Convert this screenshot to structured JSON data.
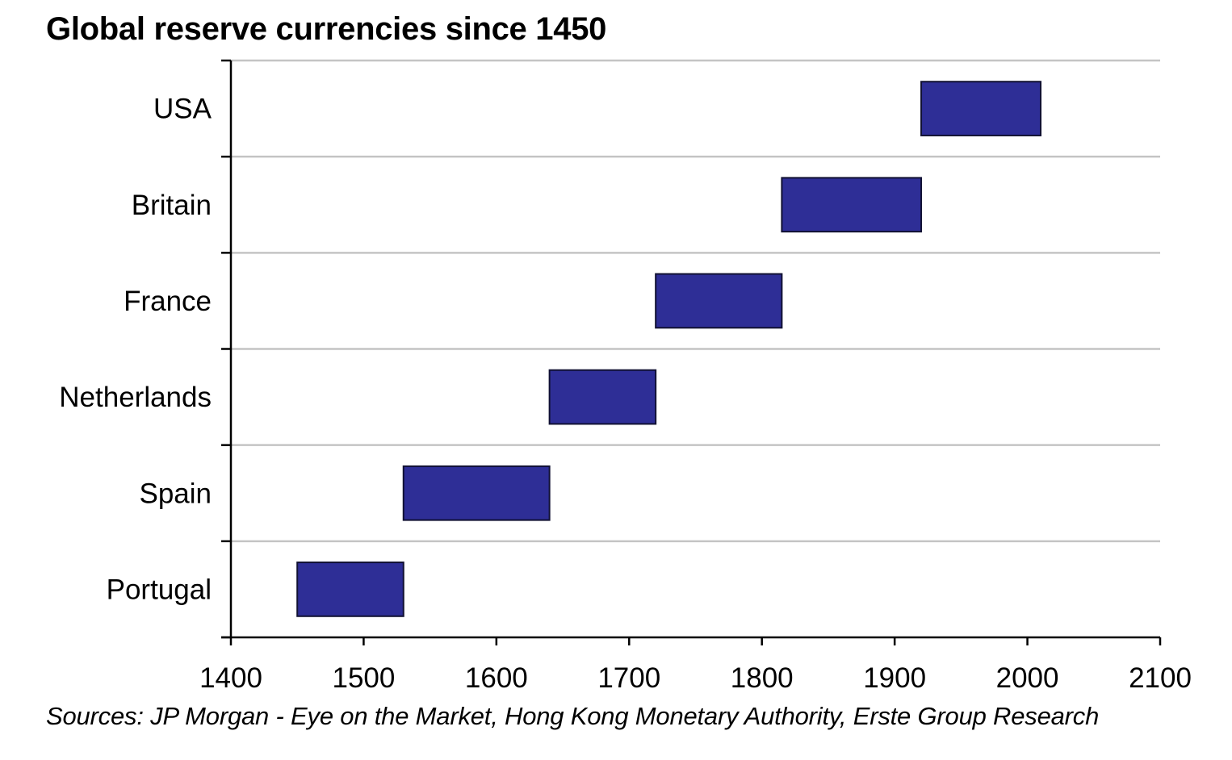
{
  "chart_data": {
    "type": "bar",
    "subtype": "horizontal-range",
    "title": "Global reserve currencies since 1450",
    "xlabel": "",
    "ylabel": "",
    "xlim": [
      1400,
      2100
    ],
    "x_ticks": [
      1400,
      1500,
      1600,
      1700,
      1800,
      1900,
      2000,
      2100
    ],
    "categories": [
      "USA",
      "Britain",
      "France",
      "Netherlands",
      "Spain",
      "Portugal"
    ],
    "ranges": [
      {
        "category": "USA",
        "start": 1920,
        "end": 2010
      },
      {
        "category": "Britain",
        "start": 1815,
        "end": 1920
      },
      {
        "category": "France",
        "start": 1720,
        "end": 1815
      },
      {
        "category": "Netherlands",
        "start": 1640,
        "end": 1720
      },
      {
        "category": "Spain",
        "start": 1530,
        "end": 1640
      },
      {
        "category": "Portugal",
        "start": 1450,
        "end": 1530
      }
    ],
    "grid": true,
    "bar_color": "#2e2e96",
    "bar_edge_color": "#111133"
  },
  "source_note": "Sources: JP Morgan - Eye on the Market, Hong Kong Monetary Authority, Erste Group Research"
}
